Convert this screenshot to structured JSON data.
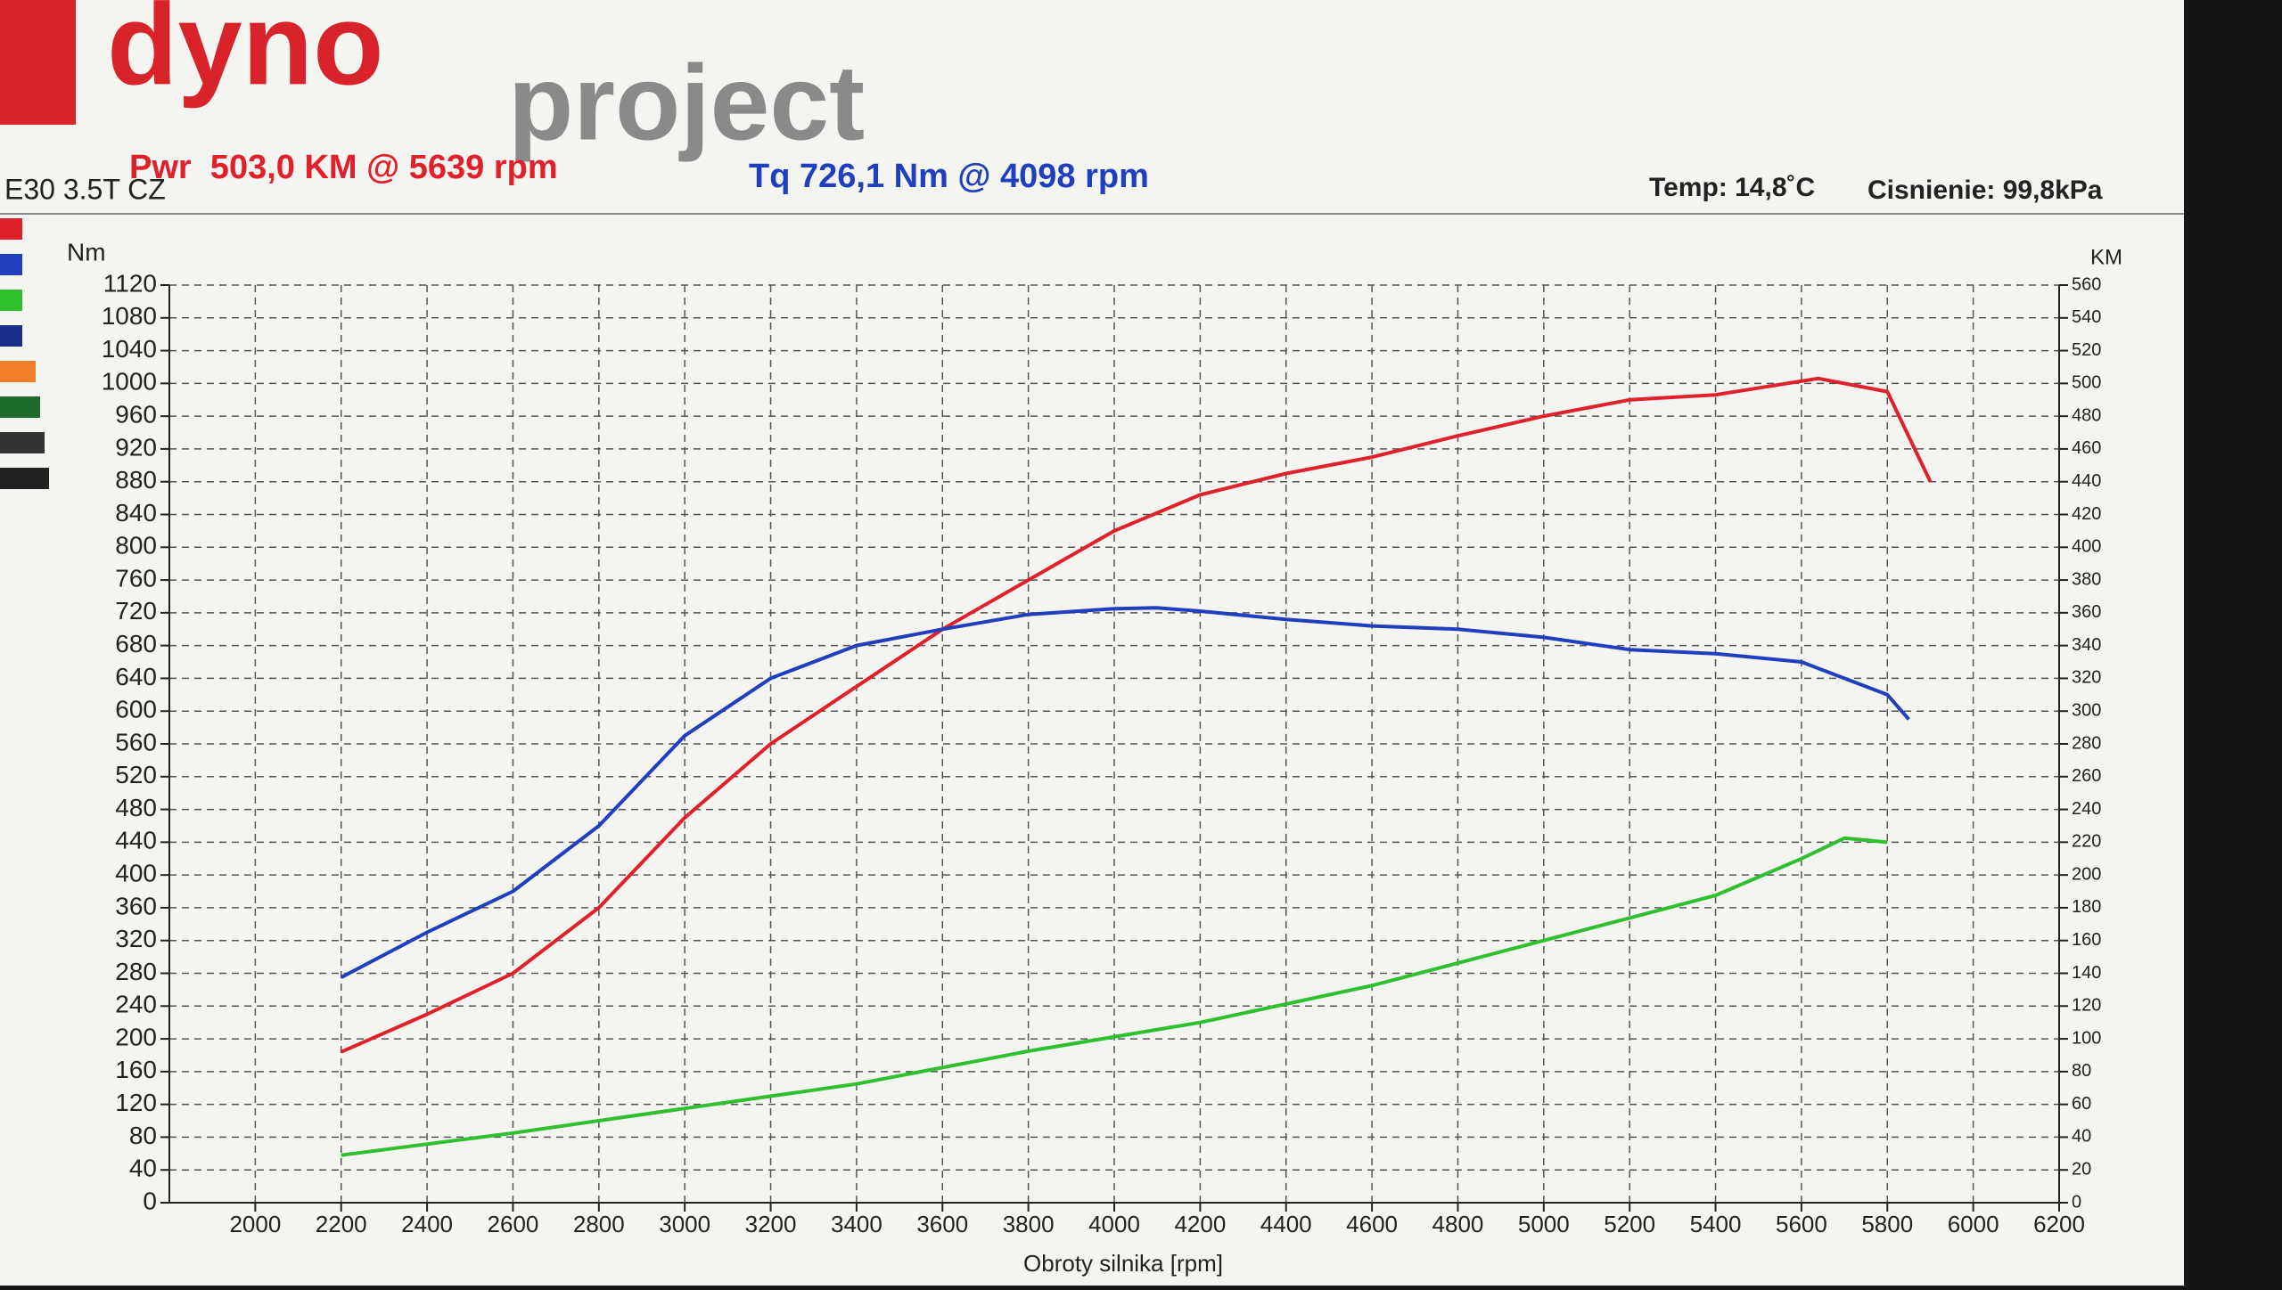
{
  "header": {
    "logo_left": "dyno",
    "logo_right": "project",
    "power": "Pwr  503,0 KM @ 5639 rpm",
    "torque": "Tq 726,1 Nm @ 4098 rpm",
    "vehicle": "E30 3.5T CZ",
    "temp": "Temp: 14,8˚C",
    "pressure": "Cisnienie: 99,8kPa"
  },
  "chart_data": {
    "type": "line",
    "y_label": "Nm",
    "y2_label": "KM",
    "x_label": "Obroty silnika [rpm]",
    "xlim": [
      1800,
      6200
    ],
    "xticks": [
      2000,
      2200,
      2400,
      2600,
      2800,
      3000,
      3200,
      3400,
      3600,
      3800,
      4000,
      4200,
      4400,
      4600,
      4800,
      5000,
      5200,
      5400,
      5600,
      5800,
      6000,
      6200
    ],
    "ylim": [
      0,
      1120
    ],
    "yticks": [
      0,
      40,
      80,
      120,
      160,
      200,
      240,
      280,
      320,
      360,
      400,
      440,
      480,
      520,
      560,
      600,
      640,
      680,
      720,
      760,
      800,
      840,
      880,
      920,
      960,
      1000,
      1040,
      1080,
      1120
    ],
    "y2lim": [
      0,
      560
    ],
    "y2ticks": [
      0,
      20,
      40,
      60,
      80,
      100,
      120,
      140,
      160,
      180,
      200,
      220,
      240,
      260,
      280,
      300,
      320,
      340,
      360,
      380,
      400,
      420,
      440,
      460,
      480,
      500,
      520,
      540,
      560
    ],
    "grid": true,
    "series": [
      {
        "color": "#e0202a",
        "axis": "y2",
        "x": [
          2200,
          2400,
          2600,
          2800,
          3000,
          3200,
          3400,
          3600,
          3800,
          4000,
          4200,
          4400,
          4600,
          4800,
          5000,
          5200,
          5400,
          5639,
          5800,
          5900
        ],
        "values": [
          92,
          115,
          140,
          180,
          235,
          280,
          315,
          350,
          380,
          410,
          432,
          445,
          455,
          468,
          480,
          490,
          493,
          503,
          495,
          440
        ]
      },
      {
        "color": "#1f3fbf",
        "axis": "y",
        "x": [
          2200,
          2400,
          2600,
          2800,
          3000,
          3200,
          3400,
          3600,
          3800,
          4000,
          4098,
          4200,
          4400,
          4600,
          4800,
          5000,
          5200,
          5400,
          5600,
          5800,
          5850
        ],
        "values": [
          275,
          330,
          380,
          460,
          570,
          640,
          680,
          700,
          718,
          725,
          726,
          722,
          712,
          704,
          700,
          690,
          675,
          670,
          660,
          620,
          590
        ]
      },
      {
        "color": "#2ec02e",
        "axis": "y",
        "x": [
          2200,
          2600,
          3000,
          3400,
          3800,
          4200,
          4600,
          5000,
          5400,
          5600,
          5700,
          5800
        ],
        "values": [
          58,
          85,
          115,
          145,
          185,
          220,
          265,
          320,
          375,
          420,
          445,
          440
        ]
      }
    ]
  }
}
